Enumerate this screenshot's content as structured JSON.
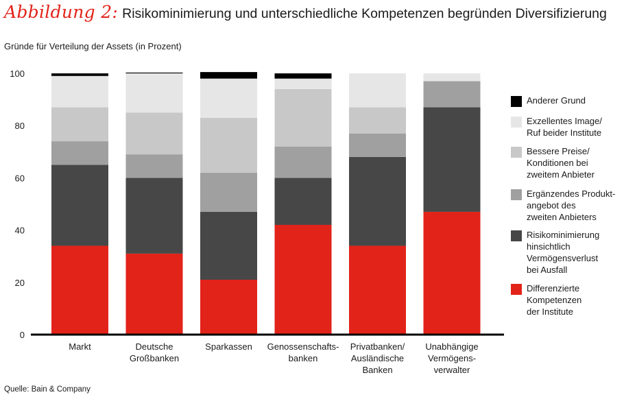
{
  "header": {
    "figure_label": "Abbildung 2:",
    "title": "Risikominimierung und unterschiedliche Kompetenzen begründen Diversifizierung"
  },
  "footer": {
    "source": "Quelle: Bain & Company"
  },
  "colors": {
    "anderer": "#000000",
    "image": "#e6e6e6",
    "preise": "#c8c8c8",
    "produkt": "#a0a0a0",
    "risiko": "#474747",
    "kompetenz": "#e2231a",
    "axis": "#000000"
  },
  "chart_data": {
    "type": "bar",
    "stacked": true,
    "title": "Gründe für Verteilung der Assets (in Prozent)",
    "ylim": [
      0,
      100
    ],
    "yticks": [
      0,
      20,
      40,
      60,
      80,
      100
    ],
    "legend_position": "right",
    "grid": false,
    "categories": [
      "Markt",
      "Deutsche\nGroßbanken",
      "Sparkassen",
      "Genossenschafts-\nbanken",
      "Privatbanken/\nAusländische\nBanken",
      "Unabhängige\nVermögens-\nverwalter"
    ],
    "series": [
      {
        "name": "Differenzierte\nKompetenzen\nder Institute",
        "key": "kompetenz",
        "values": [
          34,
          31,
          21,
          42,
          34,
          47
        ]
      },
      {
        "name": "Risikominimierung\nhinsichtlich\nVermögensverlust\nbei Ausfall",
        "key": "risiko",
        "values": [
          31,
          29,
          26,
          18,
          34,
          40
        ]
      },
      {
        "name": "Ergänzendes Produkt-\nangebot des\nzweiten Anbieters",
        "key": "produkt",
        "values": [
          9,
          9,
          15,
          12,
          9,
          10
        ]
      },
      {
        "name": "Bessere Preise/\nKonditionen bei\nzweitem Anbieter",
        "key": "preise",
        "values": [
          13,
          16,
          21,
          22,
          10,
          0
        ]
      },
      {
        "name": "Exzellentes Image/\nRuf beider Institute",
        "key": "image",
        "values": [
          12,
          15,
          15,
          4,
          13,
          3
        ]
      },
      {
        "name": "Anderer Grund",
        "key": "anderer",
        "values": [
          1,
          0.3,
          2.5,
          2,
          0,
          0
        ]
      }
    ]
  }
}
